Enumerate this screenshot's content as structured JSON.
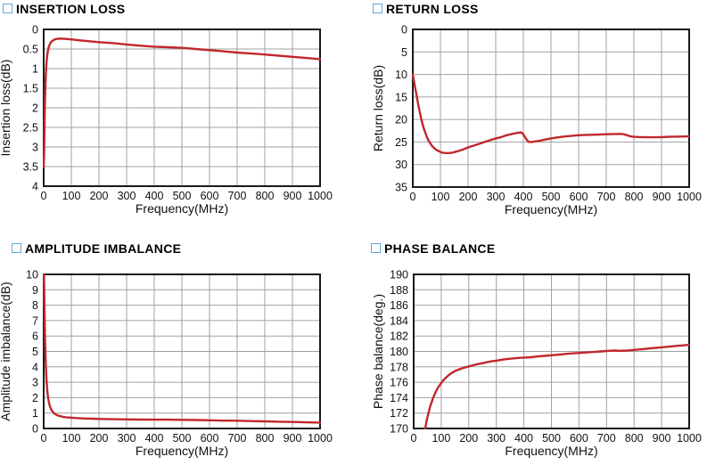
{
  "theme": {
    "background": "#ffffff",
    "curve_color": "#c1272d",
    "grid_color": "#a0a0a0",
    "frame_color": "#1a1a1a",
    "text_color": "#111111",
    "marker_color": "#5fa8d8"
  },
  "chart_data": [
    {
      "id": "insertion-loss",
      "type": "line",
      "title": "INSERTION LOSS",
      "xlabel": "Frequency(MHz)",
      "ylabel": "Insertion loss(dB)",
      "xlim": [
        0,
        1000
      ],
      "xticks": [
        0,
        100,
        200,
        300,
        400,
        500,
        600,
        700,
        800,
        900,
        1000
      ],
      "ylim": [
        0,
        4
      ],
      "yticks": [
        0,
        0.5,
        1,
        1.5,
        2,
        2.5,
        3,
        3.5,
        4
      ],
      "y_inverted": true,
      "grid": true,
      "legend": "none",
      "points": [
        [
          0,
          3.52
        ],
        [
          2,
          3.05
        ],
        [
          3,
          2.55
        ],
        [
          4,
          2.1
        ],
        [
          5,
          1.75
        ],
        [
          6,
          1.5
        ],
        [
          8,
          1.12
        ],
        [
          10,
          0.88
        ],
        [
          12,
          0.72
        ],
        [
          15,
          0.56
        ],
        [
          18,
          0.46
        ],
        [
          22,
          0.38
        ],
        [
          26,
          0.33
        ],
        [
          30,
          0.3
        ],
        [
          36,
          0.27
        ],
        [
          42,
          0.25
        ],
        [
          50,
          0.24
        ],
        [
          60,
          0.235
        ],
        [
          75,
          0.24
        ],
        [
          90,
          0.25
        ],
        [
          100,
          0.255
        ],
        [
          130,
          0.28
        ],
        [
          160,
          0.3
        ],
        [
          200,
          0.325
        ],
        [
          250,
          0.35
        ],
        [
          300,
          0.385
        ],
        [
          350,
          0.415
        ],
        [
          400,
          0.44
        ],
        [
          450,
          0.455
        ],
        [
          500,
          0.47
        ],
        [
          550,
          0.5
        ],
        [
          600,
          0.53
        ],
        [
          650,
          0.56
        ],
        [
          700,
          0.59
        ],
        [
          750,
          0.615
        ],
        [
          800,
          0.64
        ],
        [
          850,
          0.67
        ],
        [
          900,
          0.7
        ],
        [
          950,
          0.73
        ],
        [
          1000,
          0.76
        ]
      ]
    },
    {
      "id": "return-loss",
      "type": "line",
      "title": "RETURN LOSS",
      "xlabel": "Frequency(MHz)",
      "ylabel": "Return loss(dB)",
      "xlim": [
        0,
        1000
      ],
      "xticks": [
        0,
        100,
        200,
        300,
        400,
        500,
        600,
        700,
        800,
        900,
        1000
      ],
      "ylim": [
        0,
        35
      ],
      "yticks": [
        0,
        5,
        10,
        15,
        20,
        25,
        30,
        35
      ],
      "y_inverted": true,
      "grid": true,
      "legend": "none",
      "points": [
        [
          0,
          10
        ],
        [
          5,
          11.7
        ],
        [
          10,
          13.4
        ],
        [
          15,
          15.1
        ],
        [
          20,
          16.8
        ],
        [
          25,
          18.3
        ],
        [
          30,
          19.7
        ],
        [
          35,
          20.9
        ],
        [
          40,
          22
        ],
        [
          45,
          22.9
        ],
        [
          50,
          23.7
        ],
        [
          55,
          24.4
        ],
        [
          60,
          25
        ],
        [
          70,
          25.9
        ],
        [
          80,
          26.5
        ],
        [
          90,
          26.9
        ],
        [
          100,
          27.2
        ],
        [
          110,
          27.4
        ],
        [
          120,
          27.45
        ],
        [
          130,
          27.45
        ],
        [
          140,
          27.4
        ],
        [
          150,
          27.25
        ],
        [
          165,
          27
        ],
        [
          180,
          26.7
        ],
        [
          200,
          26.2
        ],
        [
          220,
          25.8
        ],
        [
          240,
          25.4
        ],
        [
          260,
          25
        ],
        [
          280,
          24.6
        ],
        [
          300,
          24.2
        ],
        [
          320,
          23.9
        ],
        [
          340,
          23.5
        ],
        [
          360,
          23.2
        ],
        [
          380,
          22.95
        ],
        [
          392,
          22.85
        ],
        [
          400,
          23.3
        ],
        [
          410,
          24.3
        ],
        [
          418,
          24.95
        ],
        [
          430,
          25
        ],
        [
          445,
          24.85
        ],
        [
          460,
          24.7
        ],
        [
          480,
          24.45
        ],
        [
          500,
          24.2
        ],
        [
          520,
          24
        ],
        [
          540,
          23.85
        ],
        [
          560,
          23.7
        ],
        [
          580,
          23.6
        ],
        [
          600,
          23.5
        ],
        [
          630,
          23.42
        ],
        [
          660,
          23.37
        ],
        [
          690,
          23.3
        ],
        [
          720,
          23.25
        ],
        [
          745,
          23.2
        ],
        [
          762,
          23.25
        ],
        [
          775,
          23.5
        ],
        [
          788,
          23.75
        ],
        [
          800,
          23.85
        ],
        [
          825,
          23.9
        ],
        [
          850,
          23.95
        ],
        [
          875,
          23.95
        ],
        [
          900,
          23.9
        ],
        [
          925,
          23.85
        ],
        [
          950,
          23.8
        ],
        [
          975,
          23.78
        ],
        [
          1000,
          23.75
        ]
      ]
    },
    {
      "id": "amplitude-imbalance",
      "type": "line",
      "title": "AMPLITUDE IMBALANCE",
      "xlabel": "Frequency(MHz)",
      "ylabel": "Amplitude imbalance(dB)",
      "xlim": [
        0,
        1000
      ],
      "xticks": [
        0,
        100,
        200,
        300,
        400,
        500,
        600,
        700,
        800,
        900,
        1000
      ],
      "ylim": [
        0,
        10
      ],
      "yticks": [
        0,
        1,
        2,
        3,
        4,
        5,
        6,
        7,
        8,
        9,
        10
      ],
      "y_inverted": false,
      "grid": true,
      "legend": "none",
      "points": [
        [
          1,
          10
        ],
        [
          2,
          9
        ],
        [
          3,
          7.8
        ],
        [
          4,
          6.7
        ],
        [
          5,
          5.8
        ],
        [
          6,
          5.1
        ],
        [
          7,
          4.5
        ],
        [
          8,
          4
        ],
        [
          9,
          3.6
        ],
        [
          10,
          3.25
        ],
        [
          12,
          2.7
        ],
        [
          14,
          2.3
        ],
        [
          16,
          2
        ],
        [
          18,
          1.78
        ],
        [
          20,
          1.6
        ],
        [
          23,
          1.42
        ],
        [
          26,
          1.28
        ],
        [
          30,
          1.15
        ],
        [
          35,
          1.03
        ],
        [
          40,
          0.95
        ],
        [
          46,
          0.89
        ],
        [
          52,
          0.84
        ],
        [
          60,
          0.8
        ],
        [
          70,
          0.76
        ],
        [
          80,
          0.73
        ],
        [
          100,
          0.7
        ],
        [
          125,
          0.67
        ],
        [
          150,
          0.65
        ],
        [
          175,
          0.635
        ],
        [
          200,
          0.62
        ],
        [
          250,
          0.6
        ],
        [
          300,
          0.59
        ],
        [
          350,
          0.58
        ],
        [
          400,
          0.575
        ],
        [
          450,
          0.57
        ],
        [
          500,
          0.56
        ],
        [
          550,
          0.55
        ],
        [
          600,
          0.53
        ],
        [
          650,
          0.51
        ],
        [
          700,
          0.5
        ],
        [
          750,
          0.48
        ],
        [
          800,
          0.46
        ],
        [
          850,
          0.44
        ],
        [
          900,
          0.42
        ],
        [
          950,
          0.4
        ],
        [
          1000,
          0.38
        ]
      ]
    },
    {
      "id": "phase-balance",
      "type": "line",
      "title": "PHASE BALANCE",
      "xlabel": "Frequency(MHz)",
      "ylabel": "Phase balance(deg.)",
      "xlim": [
        0,
        1000
      ],
      "xticks": [
        0,
        100,
        200,
        300,
        400,
        500,
        600,
        700,
        800,
        900,
        1000
      ],
      "ylim": [
        170,
        190
      ],
      "yticks": [
        170,
        172,
        174,
        176,
        178,
        180,
        182,
        184,
        186,
        188,
        190
      ],
      "y_inverted": false,
      "grid": true,
      "legend": "none",
      "points": [
        [
          42,
          170
        ],
        [
          46,
          170.8
        ],
        [
          50,
          171.5
        ],
        [
          55,
          172.2
        ],
        [
          60,
          172.85
        ],
        [
          65,
          173.4
        ],
        [
          70,
          173.9
        ],
        [
          75,
          174.35
        ],
        [
          80,
          174.75
        ],
        [
          85,
          175.1
        ],
        [
          90,
          175.4
        ],
        [
          95,
          175.65
        ],
        [
          100,
          175.9
        ],
        [
          110,
          176.35
        ],
        [
          120,
          176.7
        ],
        [
          130,
          177
        ],
        [
          140,
          177.25
        ],
        [
          150,
          177.45
        ],
        [
          160,
          177.6
        ],
        [
          175,
          177.8
        ],
        [
          190,
          177.95
        ],
        [
          200,
          178.05
        ],
        [
          220,
          178.25
        ],
        [
          240,
          178.4
        ],
        [
          260,
          178.55
        ],
        [
          280,
          178.7
        ],
        [
          300,
          178.8
        ],
        [
          325,
          178.95
        ],
        [
          350,
          179.05
        ],
        [
          375,
          179.15
        ],
        [
          400,
          179.2
        ],
        [
          425,
          179.25
        ],
        [
          450,
          179.35
        ],
        [
          475,
          179.42
        ],
        [
          500,
          179.5
        ],
        [
          530,
          179.6
        ],
        [
          560,
          179.7
        ],
        [
          590,
          179.78
        ],
        [
          620,
          179.85
        ],
        [
          650,
          179.92
        ],
        [
          680,
          180
        ],
        [
          710,
          180.08
        ],
        [
          730,
          180.12
        ],
        [
          750,
          180.08
        ],
        [
          775,
          180.12
        ],
        [
          800,
          180.2
        ],
        [
          830,
          180.3
        ],
        [
          860,
          180.4
        ],
        [
          890,
          180.5
        ],
        [
          920,
          180.6
        ],
        [
          950,
          180.7
        ],
        [
          975,
          180.78
        ],
        [
          1000,
          180.85
        ]
      ]
    }
  ]
}
